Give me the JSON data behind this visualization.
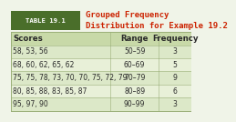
{
  "title": "Grouped Frequency\nDistribution for Example 19.2",
  "table_label": "TABLE 19.1",
  "headers": [
    "Scores",
    "Range",
    "Frequency"
  ],
  "rows": [
    [
      "58, 53, 56",
      "50–59",
      "3"
    ],
    [
      "68, 60, 62, 65, 62",
      "60–69",
      "5"
    ],
    [
      "75, 75, 78, 73, 70, 70, 75, 72, 79",
      "70–79",
      "9"
    ],
    [
      "80, 85, 88, 83, 85, 87",
      "80–89",
      "6"
    ],
    [
      "95, 97, 90",
      "90–99",
      "3"
    ]
  ],
  "header_bg": "#c8d9a8",
  "row_bg_light": "#dce8c8",
  "row_bg_mid": "#e8f0d8",
  "table_label_bg": "#4a6e2a",
  "table_label_color": "#ffffff",
  "title_color": "#cc2200",
  "border_color": "#9aaf78",
  "header_font_size": 6.2,
  "row_font_size": 5.5,
  "title_font_size": 6.5,
  "label_font_size": 5.2,
  "fig_bg": "#f0f4e8",
  "table_outer_bg": "#dce8c8"
}
